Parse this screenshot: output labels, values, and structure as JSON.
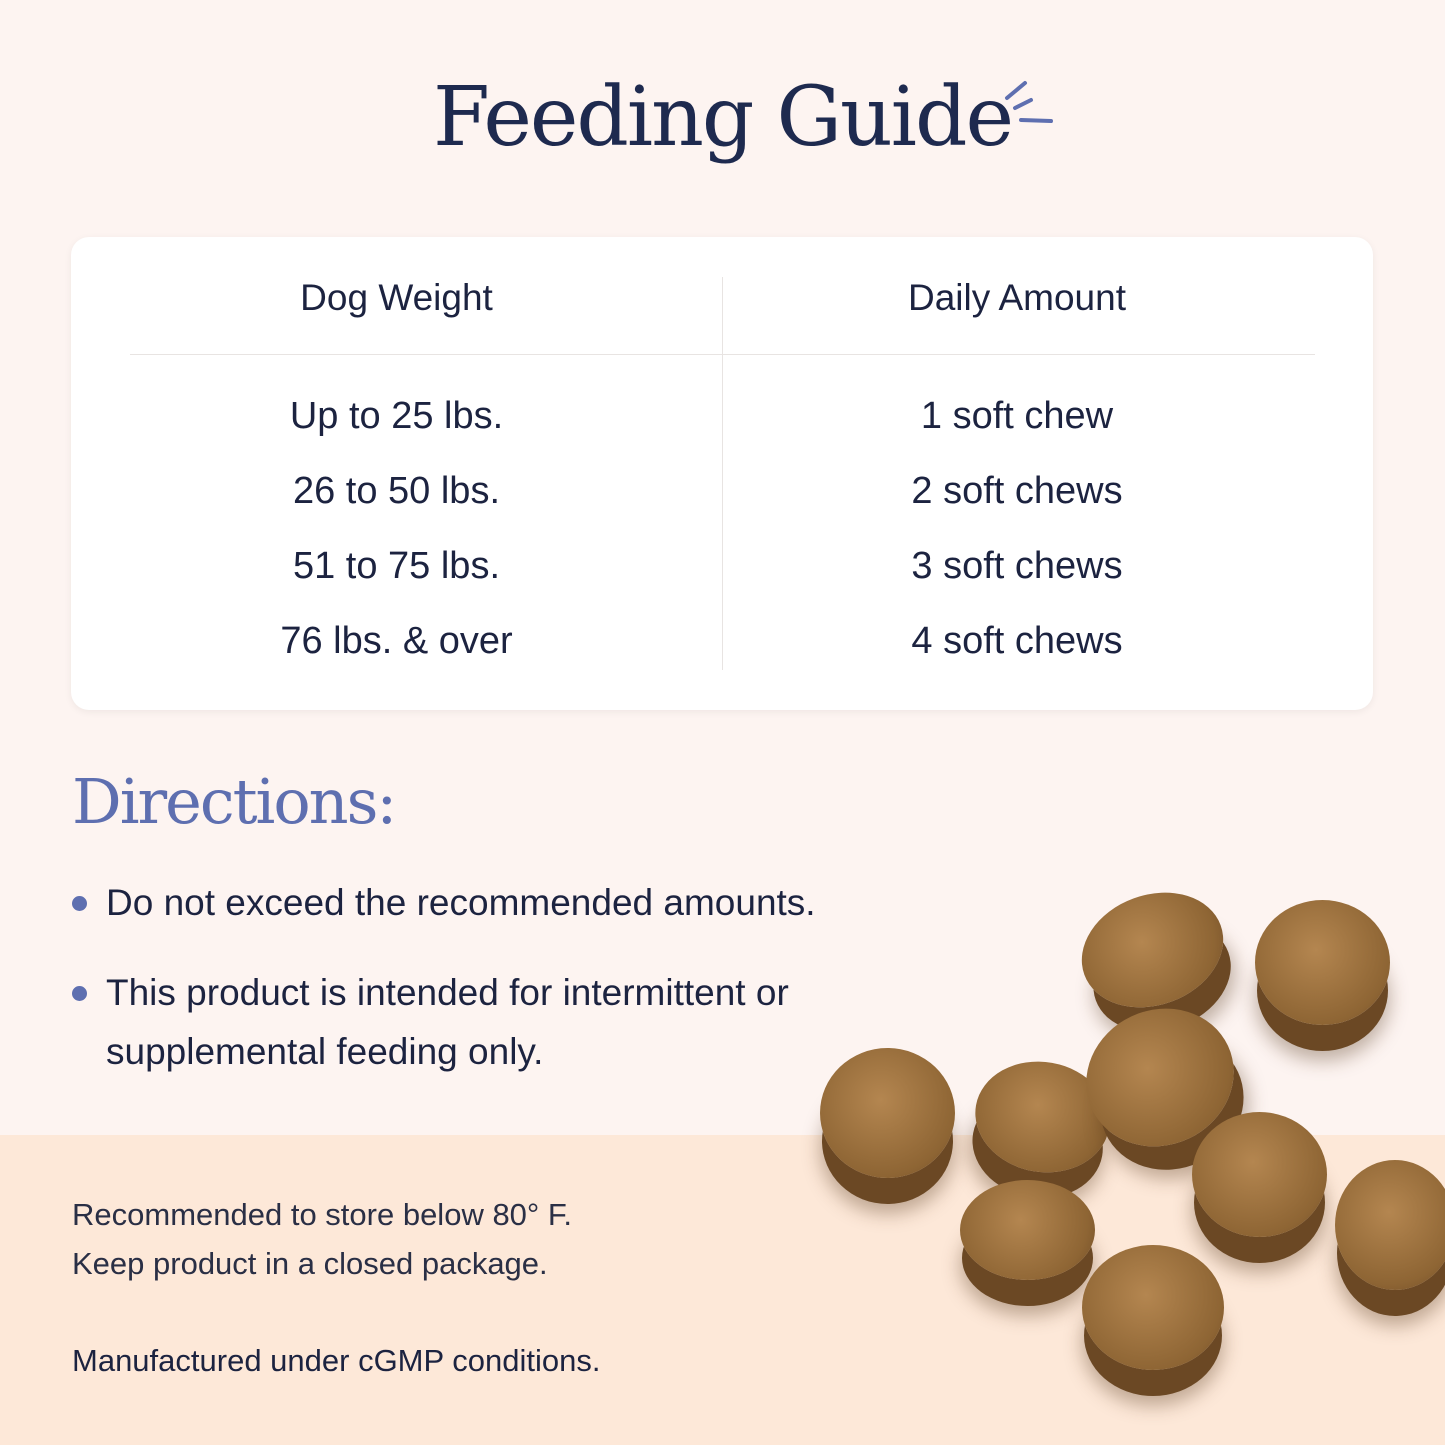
{
  "title": "Feeding Guide",
  "table": {
    "headers": [
      "Dog Weight",
      "Daily Amount"
    ],
    "rows": [
      [
        "Up to 25 lbs.",
        "1 soft chew"
      ],
      [
        "26 to 50 lbs.",
        "2 soft chews"
      ],
      [
        "51 to 75 lbs.",
        "3 soft chews"
      ],
      [
        "76 lbs. & over",
        "4 soft chews"
      ]
    ]
  },
  "directions": {
    "title": "Directions:",
    "items": [
      "Do not exceed the recommended amounts.",
      "This product is intended for intermittent or supplemental feeding only."
    ]
  },
  "storage": {
    "line1": "Recommended to store below 80° F.",
    "line2": "Keep product in a closed package.",
    "manufacturing": "Manufactured under cGMP conditions."
  },
  "colors": {
    "title": "#1e2a4f",
    "accent": "#5e6fb0",
    "background": "#fdf4f1",
    "band": "#fde8d8"
  }
}
